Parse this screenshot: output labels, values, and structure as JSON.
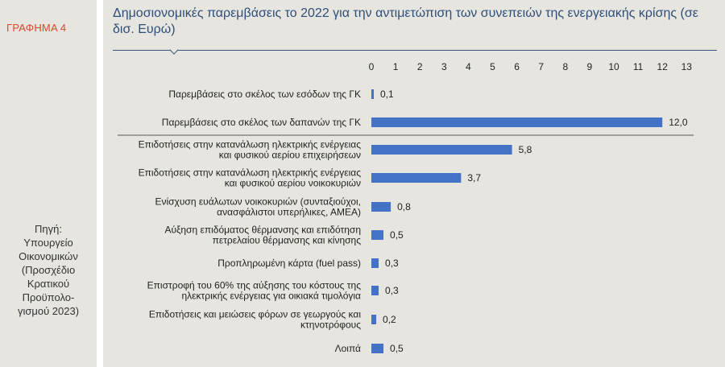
{
  "figure_label": "ΓΡΑΦΗΜΑ 4",
  "source_lines": [
    "Πηγή:",
    "Υπουργείο",
    "Οικονομικών",
    "(Προσχέδιο",
    "Κρατικού",
    "Προϋπολο-",
    "γισμού 2023)"
  ],
  "chart_data": {
    "type": "bar",
    "orientation": "horizontal",
    "title": "Δημοσιονομικές παρεμβάσεις το 2022 για την αντιμετώπιση των συνεπειών της ενεργειακής κρίσης (σε δισ. Ευρώ)",
    "xlim": [
      0,
      13
    ],
    "xticks": [
      "0",
      "1",
      "2",
      "3",
      "4",
      "5",
      "6",
      "7",
      "8",
      "9",
      "10",
      "11",
      "12",
      "13"
    ],
    "axis_position": "top",
    "grid": false,
    "bar_color": "#4472c4",
    "categories": [
      [
        "Παρεμβάσεις στο σκέλος των εσόδων της ΓΚ"
      ],
      [
        "Παρεμβάσεις στο σκέλος των δαπανών της ΓΚ"
      ],
      [
        "Επιδοτήσεις στην κατανάλωση ηλεκτρικής ενέργειας",
        "και φυσικού αερίου επιχειρήσεων"
      ],
      [
        "Επιδοτήσεις στην κατανάλωση ηλεκτρικής ενέργειας",
        "και φυσικού αερίου νοικοκυριών"
      ],
      [
        "Ενίσχυση ευάλωτων νοικοκυριών (συνταξιούχοι,",
        "ανασφάλιστοι υπερήλικες, ΑΜΕΑ)"
      ],
      [
        "Αύξηση επιδόματος θέρμανσης και επιδότηση",
        "πετρελαίου θέρμανσης και κίνησης"
      ],
      [
        "Προπληρωμένη κάρτα (fuel pass)"
      ],
      [
        "Επιστροφή του 60% της αύξησης του κόστους της",
        "ηλεκτρικής ενέργειας για οικιακά τιμολόγια"
      ],
      [
        "Επιδοτήσεις και μειώσεις φόρων σε γεωργούς και",
        "κτηνοτρόφους"
      ],
      [
        "Λοιπά"
      ]
    ],
    "values": [
      0.1,
      12.0,
      5.8,
      3.7,
      0.8,
      0.5,
      0.3,
      0.3,
      0.2,
      0.5
    ],
    "value_labels": [
      "0,1",
      "12,0",
      "5,8",
      "3,7",
      "0,8",
      "0,5",
      "0,3",
      "0,3",
      "0,2",
      "0,5"
    ]
  }
}
